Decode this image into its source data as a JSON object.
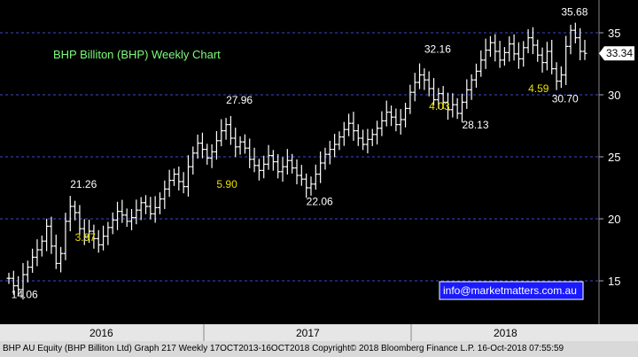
{
  "chart_data": {
    "type": "ohlc",
    "title": "BHP Billiton (BHP) Weekly Chart",
    "title_color": "#7CFC7C",
    "y_ticks": [
      15,
      20,
      25,
      30,
      35
    ],
    "ylim": [
      12.5,
      37.5
    ],
    "x_tick_labels": [
      "2016",
      "2017",
      "2018"
    ],
    "last_price_label": "33.34",
    "series": [
      {
        "values": [
          15.2,
          14.6,
          14.3,
          15.5,
          16.1,
          16.9,
          17.5,
          18.2,
          19.4,
          17.8,
          16.4,
          17.2,
          19.8,
          21.0,
          20.5,
          19.2,
          18.6,
          19.0,
          18.4,
          17.9,
          18.6,
          19.3,
          19.9,
          20.6,
          20.3,
          19.8,
          20.1,
          20.7,
          21.3,
          21.0,
          20.4,
          20.9,
          21.6,
          22.4,
          23.1,
          23.6,
          23.0,
          22.6,
          24.2,
          25.3,
          26.1,
          25.6,
          24.9,
          25.4,
          26.3,
          27.1,
          27.6,
          26.5,
          25.8,
          26.2,
          25.7,
          24.8,
          24.3,
          23.9,
          24.4,
          25.1,
          24.6,
          23.8,
          24.2,
          24.7,
          24.1,
          23.5,
          23.2,
          22.5,
          22.8,
          23.6,
          24.5,
          25.2,
          25.6,
          26.0,
          26.6,
          27.2,
          27.7,
          27.1,
          26.5,
          26.0,
          26.4,
          26.8,
          27.3,
          27.9,
          28.6,
          28.2,
          27.6,
          28.0,
          28.9,
          30.2,
          31.0,
          31.6,
          31.2,
          30.5,
          29.6,
          30.1,
          29.4,
          28.8,
          29.2,
          28.5,
          29.4,
          30.4,
          31.2,
          31.9,
          32.8,
          33.6,
          34.2,
          33.5,
          32.8,
          33.4,
          34.1,
          33.3,
          32.9,
          33.8,
          34.6,
          34.0,
          33.2,
          32.6,
          33.5,
          32.1,
          31.1,
          31.6,
          33.9,
          35.2,
          34.6,
          33.5,
          33.34
        ]
      }
    ],
    "annotations": [
      {
        "text": "14.06",
        "color": "white",
        "x": 0.5,
        "y": 13.6
      },
      {
        "text": "21.26",
        "color": "white",
        "x": 13,
        "y": 22.5
      },
      {
        "text": "3.97",
        "color": "yellow",
        "x": 14,
        "y": 18.2
      },
      {
        "text": "27.96",
        "color": "white",
        "x": 46,
        "y": 29.3
      },
      {
        "text": "5.90",
        "color": "yellow",
        "x": 44,
        "y": 22.5
      },
      {
        "text": "22.06",
        "color": "white",
        "x": 63,
        "y": 21.1
      },
      {
        "text": "32.16",
        "color": "white",
        "x": 88,
        "y": 33.4
      },
      {
        "text": "4.03",
        "color": "yellow",
        "x": 89,
        "y": 28.8
      },
      {
        "text": "28.13",
        "color": "white",
        "x": 96,
        "y": 27.3
      },
      {
        "text": "4.59",
        "color": "yellow",
        "x": 110,
        "y": 30.2
      },
      {
        "text": "30.70",
        "color": "white",
        "x": 115,
        "y": 29.4
      },
      {
        "text": "35.68",
        "color": "white",
        "x": 117,
        "y": 36.4
      }
    ],
    "watermark": "info@marketmatters.com.au",
    "grid": "horizontal dashed",
    "colors": {
      "bars": "#ffffff",
      "grid": "#3a4ad0",
      "yellow": "#e8e000",
      "watermark_box": "#1a1aff"
    }
  },
  "footer": "BHP AU Equity (BHP Billiton Ltd) Graph 217  Weekly 17OCT2013-16OCT2018 Copyright© 2018 Bloomberg Finance L.P.  16-Oct-2018 07:55:59"
}
